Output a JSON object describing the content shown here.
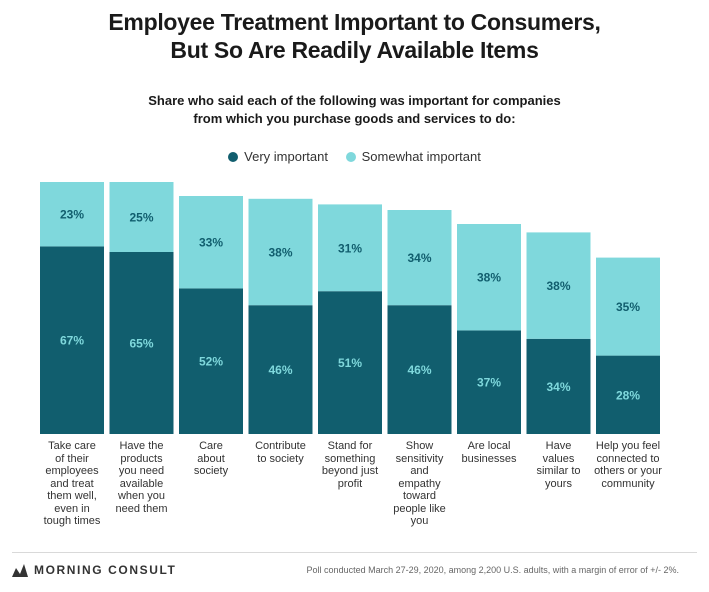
{
  "header": {
    "title_line1": "Employee Treatment Important to Consumers,",
    "title_line2": "But So Are Readily Available Items",
    "subtitle_line1": "Share who said each of the following was important for companies",
    "subtitle_line2": "from which you purchase goods and services to do:"
  },
  "legend": [
    {
      "label": "Very important",
      "color": "#115e6e"
    },
    {
      "label": "Somewhat important",
      "color": "#7fd8dc"
    }
  ],
  "chart_data": {
    "type": "bar",
    "stacked": true,
    "categories": [
      "Take care of their employees and treat them well, even in tough times",
      "Have the products you need available when you need them",
      "Care about society",
      "Contribute to society",
      "Stand for something beyond just profit",
      "Show sensitivity and empathy toward people like you",
      "Are local businesses",
      "Have values similar to yours",
      "Help you feel connected to others or your community"
    ],
    "category_lines": [
      [
        "Take care",
        "of their",
        "employees",
        "and treat",
        "them well,",
        "even in",
        "tough times"
      ],
      [
        "Have the",
        "products",
        "you need",
        "available",
        "when you",
        "need them"
      ],
      [
        "Care",
        "about",
        "society"
      ],
      [
        "Contribute",
        "to society"
      ],
      [
        "Stand for",
        "something",
        "beyond just",
        "profit"
      ],
      [
        "Show",
        "sensitivity",
        "and",
        "empathy",
        "toward",
        "people like",
        "you"
      ],
      [
        "Are local",
        "businesses"
      ],
      [
        "Have",
        "values",
        "similar to",
        "yours"
      ],
      [
        "Help you feel",
        "connected to",
        "others or your",
        "community"
      ]
    ],
    "series": [
      {
        "name": "Very important",
        "color": "#115e6e",
        "label_color": "#7fd8dc",
        "values": [
          67,
          65,
          52,
          46,
          51,
          46,
          37,
          34,
          28
        ],
        "labels": [
          "67%",
          "65%",
          "52%",
          "46%",
          "51%",
          "46%",
          "37%",
          "34%",
          "28%"
        ]
      },
      {
        "name": "Somewhat important",
        "color": "#7fd8dc",
        "label_color": "#115e6e",
        "values": [
          23,
          25,
          33,
          38,
          31,
          34,
          38,
          38,
          35
        ],
        "labels": [
          "23%",
          "25%",
          "33%",
          "38%",
          "31%",
          "34%",
          "38%",
          "38%",
          "35%"
        ]
      }
    ],
    "ylim": [
      0,
      100
    ],
    "grid": false,
    "legend_position": "top-center"
  },
  "footer": {
    "brand": "MORNING CONSULT",
    "footnote": "Poll conducted March 27-29, 2020, among 2,200 U.S. adults, with a margin of error of +/- 2%."
  }
}
